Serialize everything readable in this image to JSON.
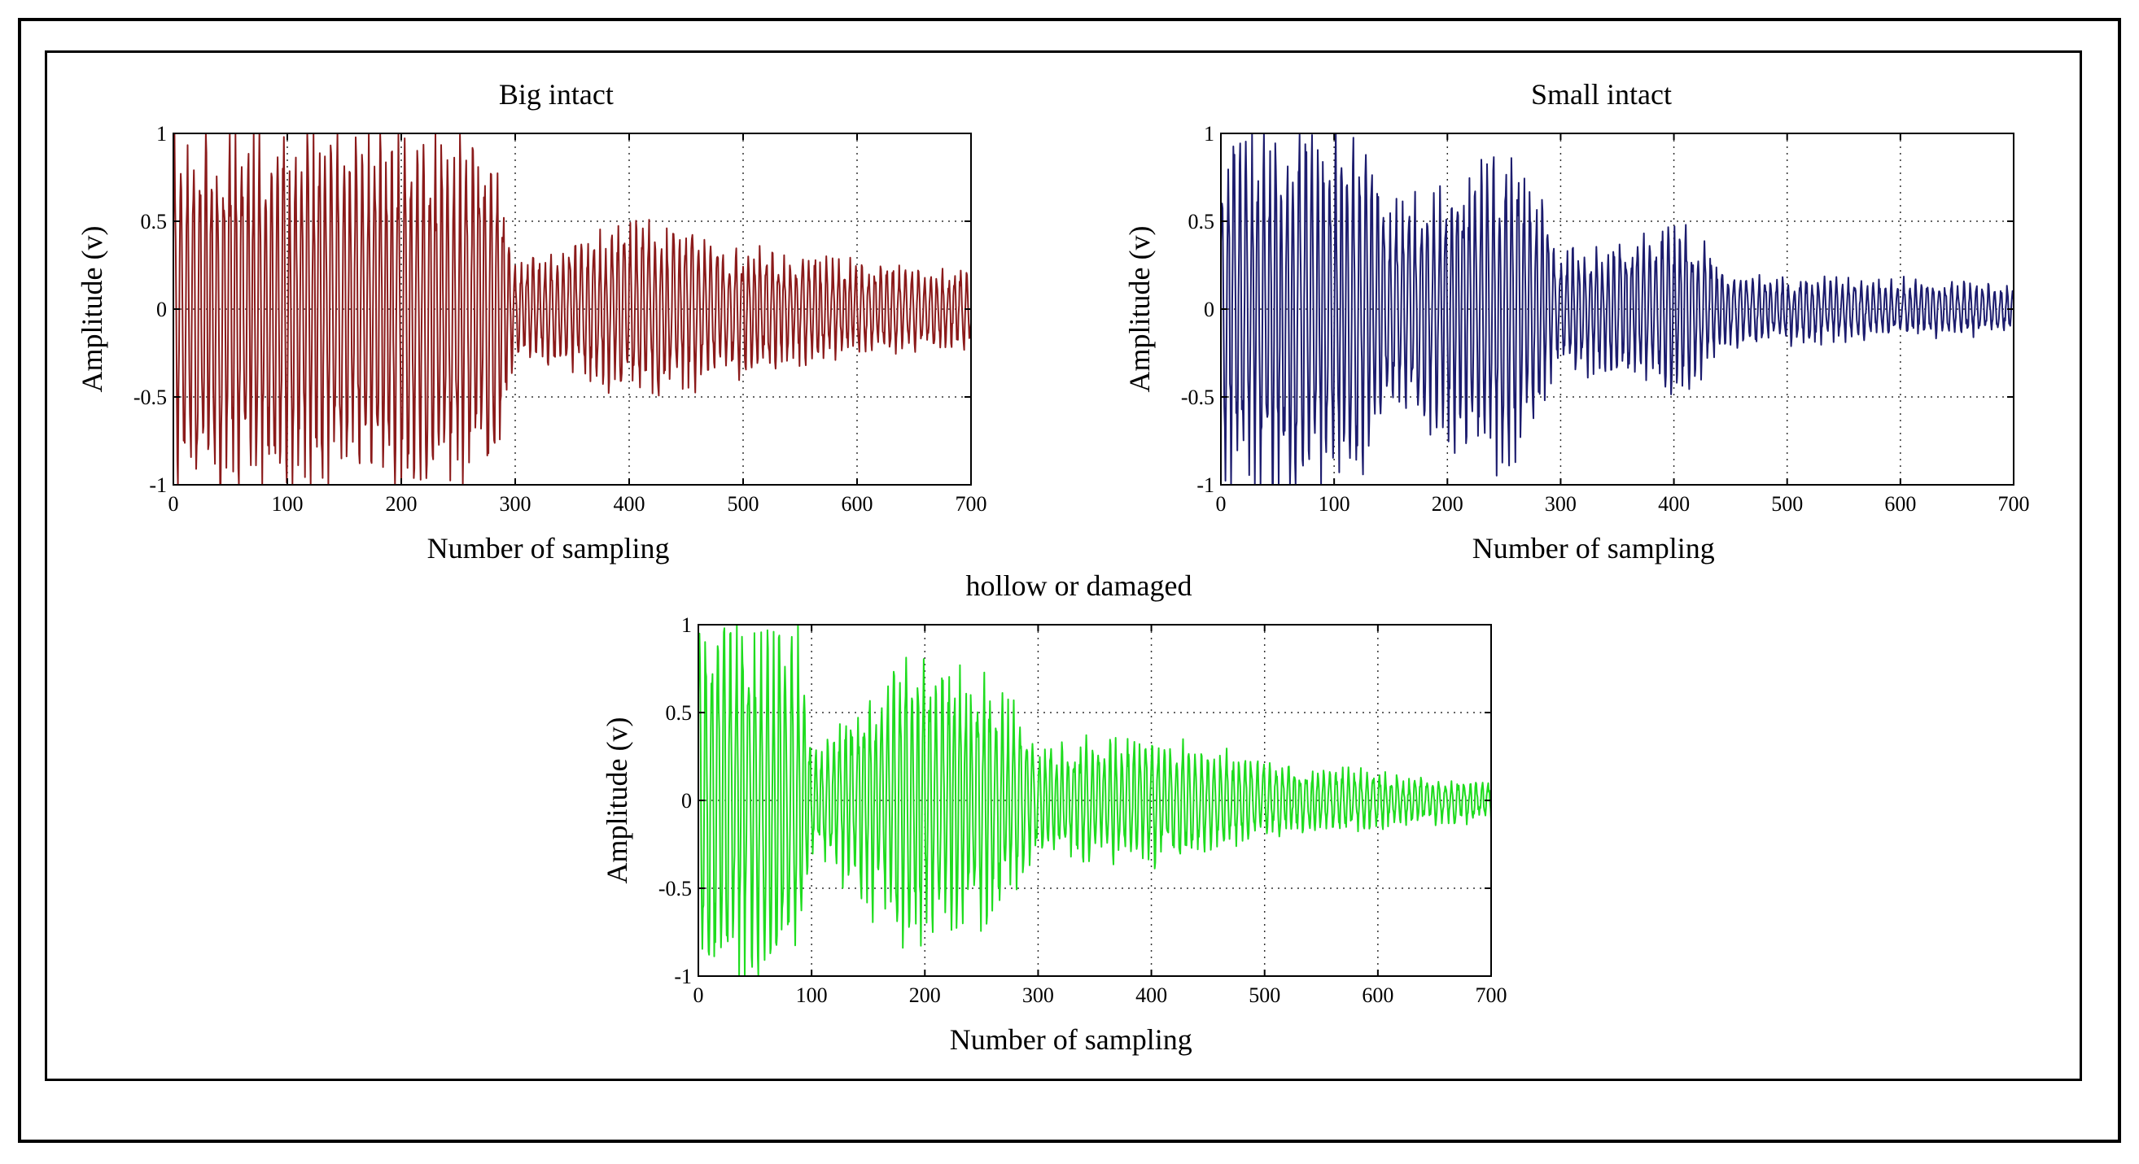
{
  "chart_data": [
    {
      "type": "line",
      "title": "Big intact",
      "xlabel": "Number of sampling",
      "ylabel": "Amplitude (v)",
      "xlim": [
        0,
        700
      ],
      "ylim": [
        -1,
        1
      ],
      "xticks": [
        0,
        100,
        200,
        300,
        400,
        500,
        600,
        700
      ],
      "xtick_labels": [
        "0",
        "100",
        "200",
        "300",
        "400",
        "500",
        "600",
        "700"
      ],
      "yticks": [
        -1,
        -0.5,
        0,
        0.5,
        1
      ],
      "ytick_labels": [
        "-1",
        "-0.5",
        "0",
        "0.5",
        "1"
      ],
      "grid": true,
      "color": "#8b1a1a",
      "series": [
        {
          "name": "Big intact",
          "envelope": [
            [
              0,
              1.0
            ],
            [
              280,
              0.95
            ],
            [
              300,
              0.25
            ],
            [
              420,
              0.5
            ],
            [
              480,
              0.35
            ],
            [
              700,
              0.2
            ]
          ]
        }
      ]
    },
    {
      "type": "line",
      "title": "Small intact",
      "xlabel": "Number of sampling",
      "ylabel": "Amplitude (v)",
      "xlim": [
        0,
        700
      ],
      "ylim": [
        -1,
        1
      ],
      "xticks": [
        0,
        100,
        200,
        300,
        400,
        500,
        600,
        700
      ],
      "xtick_labels": [
        "0",
        "100",
        "200",
        "300",
        "400",
        "500",
        "600",
        "700"
      ],
      "yticks": [
        -1,
        -0.5,
        0,
        0.5,
        1
      ],
      "ytick_labels": [
        "-1",
        "-0.5",
        "0",
        "0.5",
        "1"
      ],
      "grid": true,
      "color": "#1c1c6e",
      "series": [
        {
          "name": "Small intact",
          "envelope": [
            [
              0,
              1.0
            ],
            [
              120,
              0.95
            ],
            [
              150,
              0.55
            ],
            [
              260,
              0.9
            ],
            [
              300,
              0.3
            ],
            [
              410,
              0.45
            ],
            [
              450,
              0.2
            ],
            [
              700,
              0.12
            ]
          ]
        }
      ]
    },
    {
      "type": "line",
      "title": "hollow or damaged",
      "xlabel": "Number of sampling",
      "ylabel": "Amplitude (v)",
      "xlim": [
        0,
        700
      ],
      "ylim": [
        -1,
        1
      ],
      "xticks": [
        0,
        100,
        200,
        300,
        400,
        500,
        600,
        700
      ],
      "xtick_labels": [
        "0",
        "100",
        "200",
        "300",
        "400",
        "500",
        "600",
        "700"
      ],
      "yticks": [
        -1,
        -0.5,
        0,
        0.5,
        1
      ],
      "ytick_labels": [
        "-1",
        "-0.5",
        "0",
        "0.5",
        "1"
      ],
      "grid": true,
      "color": "#1edc1e",
      "series": [
        {
          "name": "hollow or damaged",
          "envelope": [
            [
              0,
              1.0
            ],
            [
              90,
              0.95
            ],
            [
              100,
              0.25
            ],
            [
              180,
              0.8
            ],
            [
              260,
              0.65
            ],
            [
              300,
              0.3
            ],
            [
              400,
              0.35
            ],
            [
              500,
              0.2
            ],
            [
              700,
              0.1
            ]
          ]
        }
      ]
    }
  ]
}
